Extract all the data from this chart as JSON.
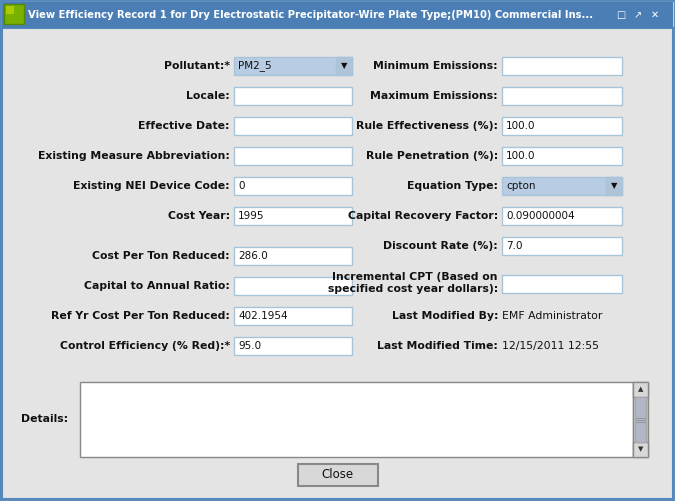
{
  "title_short": "View Efficiency Record 1 for Dry Electrostatic Precipitator-Wire Plate Type;(PM10) Commercial Ins...",
  "bg_color": "#d4d0c8",
  "form_bg": "#e4e4e4",
  "titlebar_bg": "#4a7eb5",
  "field_bg": "#ffffff",
  "field_border": "#a8c4d8",
  "dropdown_bg": "#b8cce4",
  "left_labels": [
    "Pollutant:*",
    "Locale:",
    "Effective Date:",
    "Existing Measure Abbreviation:",
    "Existing NEI Device Code:",
    "Cost Year:",
    "Cost Per Ton Reduced:",
    "Capital to Annual Ratio:",
    "Ref Yr Cost Per Ton Reduced:",
    "Control Efficiency (% Red):*"
  ],
  "left_values": [
    "PM2_5",
    "",
    "",
    "",
    "0",
    "1995",
    "286.0",
    "",
    "402.1954",
    "95.0"
  ],
  "left_is_dropdown": [
    true,
    false,
    false,
    false,
    false,
    false,
    false,
    false,
    false,
    false
  ],
  "right_labels": [
    "Minimum Emissions:",
    "Maximum Emissions:",
    "Rule Effectiveness (%):",
    "Rule Penetration (%):",
    "Equation Type:",
    "Capital Recovery Factor:",
    "Discount Rate (%):",
    "Incremental CPT (Based on\nspecified cost year dollars):",
    "Last Modified By:",
    "Last Modified Time:"
  ],
  "right_values": [
    "",
    "",
    "100.0",
    "100.0",
    "cpton",
    "0.090000004",
    "7.0",
    "",
    "EMF Administrator",
    "12/15/2011 12:55"
  ],
  "right_is_dropdown": [
    false,
    false,
    false,
    false,
    true,
    false,
    false,
    false,
    false,
    false
  ],
  "right_is_text_only": [
    false,
    false,
    false,
    false,
    false,
    false,
    false,
    false,
    true,
    true
  ],
  "details_label": "Details:",
  "close_button": "Close"
}
